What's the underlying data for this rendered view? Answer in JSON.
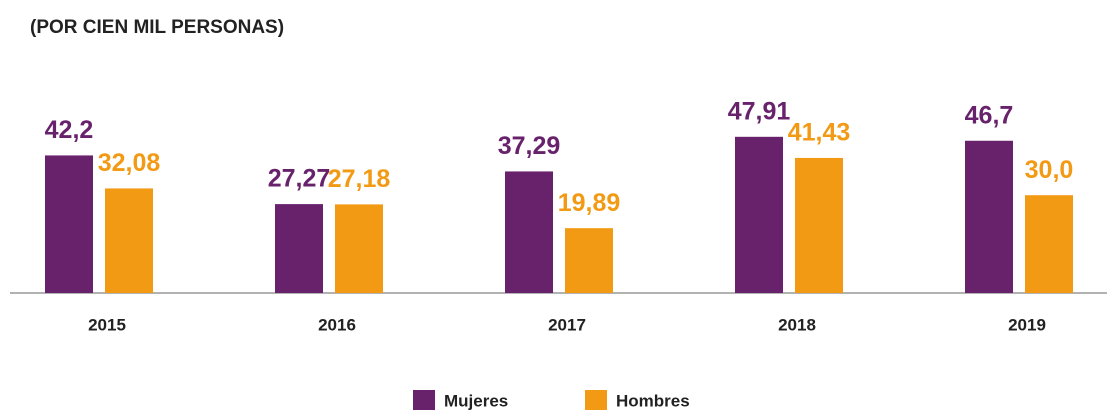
{
  "chart_data": {
    "type": "bar",
    "title": "(POR CIEN MIL PERSONAS)",
    "categories": [
      "2015",
      "2016",
      "2017",
      "2018",
      "2019"
    ],
    "series": [
      {
        "name": "Mujeres",
        "color": "#68226c",
        "values": [
          42.2,
          27.27,
          37.29,
          47.91,
          46.7
        ],
        "value_labels": [
          "42,2",
          "27,27",
          "37,29",
          "47,91",
          "46,7"
        ]
      },
      {
        "name": "Hombres",
        "color": "#f39a15",
        "values": [
          32.08,
          27.18,
          19.89,
          41.43,
          30.0
        ],
        "value_labels": [
          "32,08",
          "27,18",
          "19,89",
          "41,43",
          "30,0"
        ]
      }
    ],
    "ylim": [
      0,
      50
    ]
  }
}
